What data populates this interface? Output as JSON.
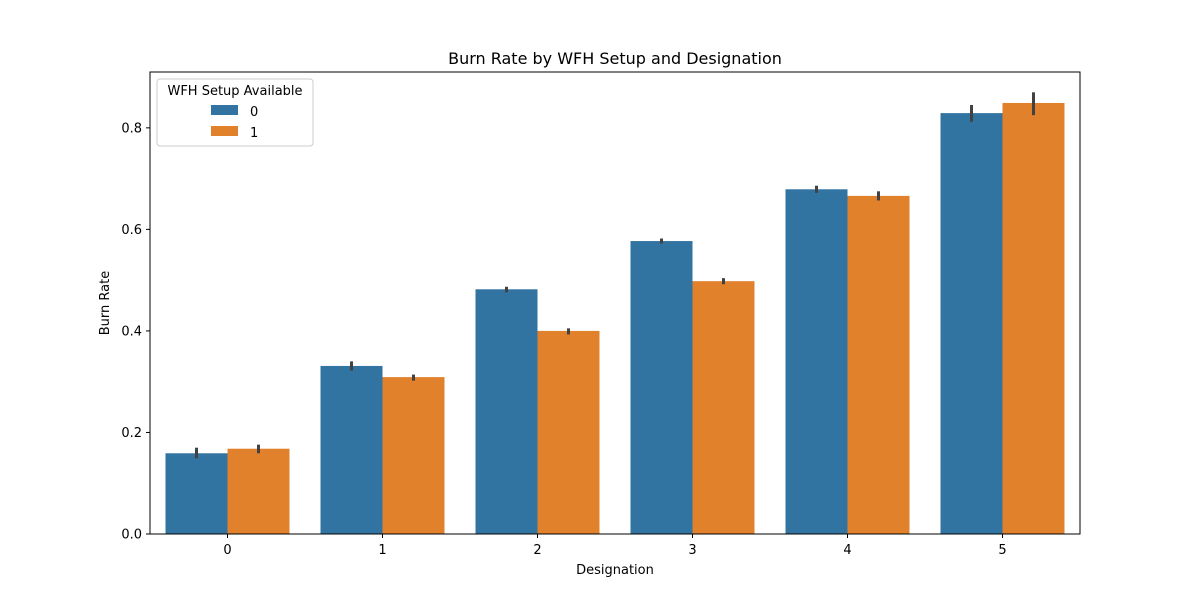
{
  "chart_data": {
    "type": "bar",
    "title": "Burn Rate by WFH Setup and Designation",
    "xlabel": "Designation",
    "ylabel": "Burn Rate",
    "categories": [
      "0",
      "1",
      "2",
      "3",
      "4",
      "5"
    ],
    "ylim": [
      0,
      0.91
    ],
    "yticks": [
      0.0,
      0.2,
      0.4,
      0.6,
      0.8
    ],
    "ytick_labels": [
      "0.0",
      "0.2",
      "0.4",
      "0.6",
      "0.8"
    ],
    "grid": false,
    "legend": {
      "title": "WFH Setup Available",
      "placement": "top-left"
    },
    "series": [
      {
        "name": "0",
        "color": "#3274a1",
        "values": [
          0.159,
          0.331,
          0.482,
          0.577,
          0.679,
          0.829
        ],
        "error_low": [
          0.149,
          0.322,
          0.476,
          0.572,
          0.672,
          0.812
        ],
        "error_high": [
          0.17,
          0.34,
          0.487,
          0.582,
          0.686,
          0.845
        ]
      },
      {
        "name": "1",
        "color": "#e1812c",
        "values": [
          0.168,
          0.309,
          0.4,
          0.498,
          0.666,
          0.849
        ],
        "error_low": [
          0.159,
          0.302,
          0.393,
          0.492,
          0.657,
          0.825
        ],
        "error_high": [
          0.176,
          0.314,
          0.405,
          0.504,
          0.675,
          0.87
        ]
      }
    ],
    "error_bar_color": "#424242"
  }
}
